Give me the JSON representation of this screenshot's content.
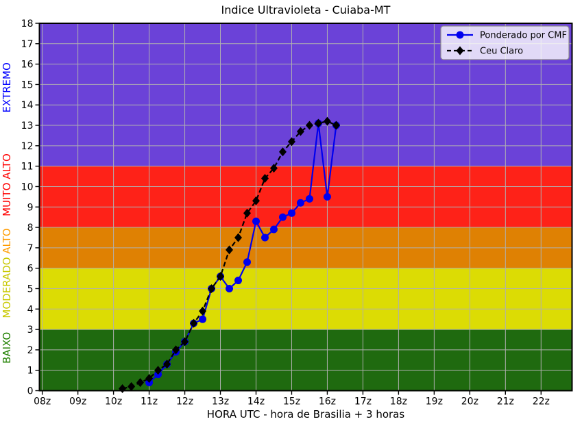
{
  "window": {
    "title": "Indice Ultravioleta - Cuiaba-MT"
  },
  "chart_data": {
    "type": "line",
    "title": "Indice Ultravioleta - Cuiaba-MT",
    "xlabel": "HORA UTC - hora de Brasilia + 3 horas",
    "ylabel": "",
    "xlim": [
      7.92,
      22.87
    ],
    "ylim": [
      0,
      18
    ],
    "grid": true,
    "grid_color": "#b0b0b0",
    "spine_color": "#000000",
    "x_ticks": [
      {
        "value": 8,
        "label": "08z"
      },
      {
        "value": 9,
        "label": "09z"
      },
      {
        "value": 10,
        "label": "10z"
      },
      {
        "value": 11,
        "label": "11z"
      },
      {
        "value": 12,
        "label": "12z"
      },
      {
        "value": 13,
        "label": "13z"
      },
      {
        "value": 14,
        "label": "14z"
      },
      {
        "value": 15,
        "label": "15z"
      },
      {
        "value": 16,
        "label": "16z"
      },
      {
        "value": 17,
        "label": "17z"
      },
      {
        "value": 18,
        "label": "18z"
      },
      {
        "value": 19,
        "label": "19z"
      },
      {
        "value": 20,
        "label": "20z"
      },
      {
        "value": 21,
        "label": "21z"
      },
      {
        "value": 22,
        "label": "22z"
      }
    ],
    "y_ticks": [
      {
        "value": 0,
        "label": "0"
      },
      {
        "value": 1,
        "label": "1"
      },
      {
        "value": 2,
        "label": "2"
      },
      {
        "value": 3,
        "label": "3"
      },
      {
        "value": 4,
        "label": "4"
      },
      {
        "value": 5,
        "label": "5"
      },
      {
        "value": 6,
        "label": "6"
      },
      {
        "value": 7,
        "label": "7"
      },
      {
        "value": 8,
        "label": "8"
      },
      {
        "value": 9,
        "label": "9"
      },
      {
        "value": 10,
        "label": "10"
      },
      {
        "value": 11,
        "label": "11"
      },
      {
        "value": 12,
        "label": "12"
      },
      {
        "value": 13,
        "label": "13"
      },
      {
        "value": 14,
        "label": "14"
      },
      {
        "value": 15,
        "label": "15"
      },
      {
        "value": 16,
        "label": "16"
      },
      {
        "value": 17,
        "label": "17"
      },
      {
        "value": 18,
        "label": "18"
      }
    ],
    "bands": [
      {
        "label": "BAIXO",
        "range": [
          0,
          3
        ],
        "color": "#1f6a0f",
        "label_color": "#208000",
        "label_pos": 2.1
      },
      {
        "label": "MODERADO",
        "range": [
          3,
          6
        ],
        "color": "#dcdc04",
        "label_color": "#c8c800",
        "label_pos": 5.05
      },
      {
        "label": "ALTO",
        "range": [
          6,
          8
        ],
        "color": "#df8103",
        "label_color": "#ff9c00",
        "label_pos": 7.33
      },
      {
        "label": "MUITO ALTO",
        "range": [
          8,
          11
        ],
        "color": "#fe2218",
        "label_color": "#ff0000",
        "label_pos": 10.08
      },
      {
        "label": "EXTREMO",
        "range": [
          11,
          18
        ],
        "color": "#6b42d8",
        "label_color": "#0000ff",
        "label_pos": 14.85
      }
    ],
    "legend": {
      "position": "top-right",
      "background": "rgba(255,255,255,0.8)",
      "border_color": "#8c8c8c"
    },
    "series": [
      {
        "name": "Ponderado por CMF",
        "color": "#0000ee",
        "line": "solid",
        "marker": "circle",
        "points": [
          [
            11.0,
            0.4
          ],
          [
            11.25,
            0.8
          ],
          [
            11.5,
            1.3
          ],
          [
            11.75,
            1.9
          ],
          [
            12.0,
            2.4
          ],
          [
            12.25,
            3.3
          ],
          [
            12.5,
            3.5
          ],
          [
            12.75,
            5.0
          ],
          [
            13.0,
            5.6
          ],
          [
            13.25,
            5.0
          ],
          [
            13.5,
            5.4
          ],
          [
            13.75,
            6.3
          ],
          [
            14.0,
            8.3
          ],
          [
            14.25,
            7.5
          ],
          [
            14.5,
            7.9
          ],
          [
            14.75,
            8.5
          ],
          [
            15.0,
            8.7
          ],
          [
            15.25,
            9.2
          ],
          [
            15.5,
            9.4
          ],
          [
            15.75,
            13.1
          ],
          [
            16.0,
            9.5
          ],
          [
            16.25,
            13.0
          ]
        ]
      },
      {
        "name": "Ceu Claro",
        "color": "#000000",
        "line": "dashed",
        "marker": "diamond",
        "points": [
          [
            10.25,
            0.1
          ],
          [
            10.5,
            0.2
          ],
          [
            10.75,
            0.4
          ],
          [
            11.0,
            0.6
          ],
          [
            11.25,
            1.0
          ],
          [
            11.5,
            1.3
          ],
          [
            11.75,
            2.0
          ],
          [
            12.0,
            2.4
          ],
          [
            12.25,
            3.3
          ],
          [
            12.5,
            3.9
          ],
          [
            12.75,
            5.0
          ],
          [
            13.0,
            5.6
          ],
          [
            13.25,
            6.9
          ],
          [
            13.5,
            7.5
          ],
          [
            13.75,
            8.7
          ],
          [
            14.0,
            9.3
          ],
          [
            14.25,
            10.4
          ],
          [
            14.5,
            10.9
          ],
          [
            14.75,
            11.7
          ],
          [
            15.0,
            12.2
          ],
          [
            15.25,
            12.7
          ],
          [
            15.5,
            13.0
          ],
          [
            15.75,
            13.1
          ],
          [
            16.0,
            13.2
          ],
          [
            16.25,
            13.0
          ]
        ]
      }
    ]
  }
}
